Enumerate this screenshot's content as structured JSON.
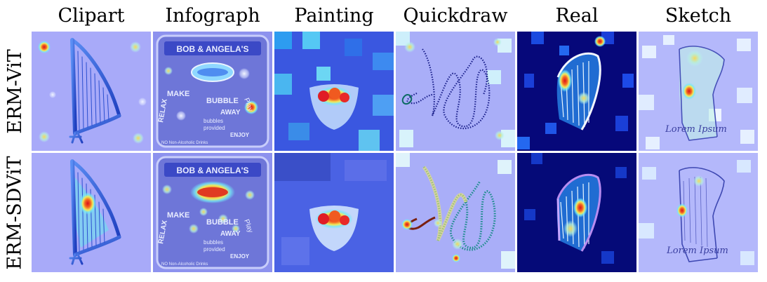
{
  "columns": [
    "Clipart",
    "Infograph",
    "Painting",
    "Quickdraw",
    "Real",
    "Sketch"
  ],
  "rows": [
    "ERM-ViT",
    "ERM-SDViT"
  ],
  "infograph_texts": {
    "banner": "BOB & ANGELA'S",
    "make": "MAKE",
    "relax": "RELAX",
    "bubble": "BUBBLE",
    "bubbles": "bubbles",
    "provided": "provided",
    "play": "Play",
    "away": "AWAY",
    "non_alcoholic": "NO Non-Alcoholic Drinks",
    "enjoy": "ENJOY"
  },
  "sketch_caption": "Lorem Ipsum",
  "colors": {
    "heat_background": "#a6a8fb",
    "deep_blue": "#06087a",
    "heat_red": "#e8202a",
    "heat_yellow": "#f1ea5a",
    "heat_cyan": "#6fe7f6"
  }
}
